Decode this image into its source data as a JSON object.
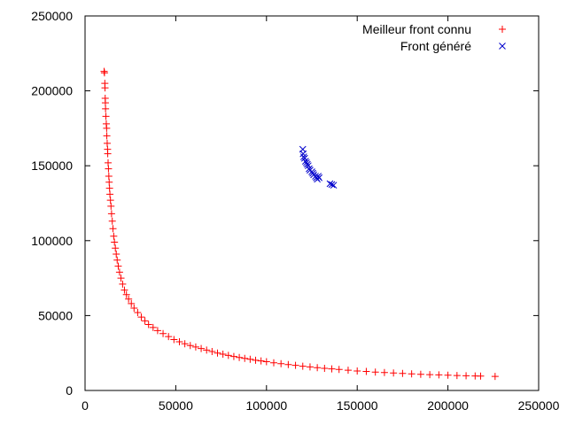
{
  "colors": {
    "series_known": "#ff0000",
    "series_generated": "#0000cc",
    "axis": "#000000",
    "background": "#ffffff"
  },
  "chart_data": {
    "type": "scatter",
    "title": "",
    "xlabel": "",
    "ylabel": "",
    "xlim": [
      0,
      250000
    ],
    "ylim": [
      0,
      250000
    ],
    "x_ticks": [
      0,
      50000,
      100000,
      150000,
      200000,
      250000
    ],
    "y_ticks": [
      0,
      50000,
      100000,
      150000,
      200000,
      250000
    ],
    "x_tick_labels": [
      "0",
      "50000",
      "100000",
      "150000",
      "200000",
      "250000"
    ],
    "y_tick_labels": [
      "0",
      "50000",
      "100000",
      "150000",
      "200000",
      "250000"
    ],
    "grid": false,
    "legend_position": "top-right",
    "series": [
      {
        "name": "Meilleur front connu",
        "marker": "plus",
        "color": "#ff0000",
        "points": [
          [
            10500,
            213000
          ],
          [
            10700,
            212000
          ],
          [
            10900,
            205000
          ],
          [
            11000,
            202000
          ],
          [
            11100,
            195000
          ],
          [
            11200,
            192000
          ],
          [
            11300,
            188000
          ],
          [
            11500,
            183000
          ],
          [
            11700,
            178000
          ],
          [
            11900,
            175000
          ],
          [
            12000,
            170000
          ],
          [
            12200,
            165000
          ],
          [
            12400,
            161000
          ],
          [
            12500,
            158000
          ],
          [
            12700,
            152000
          ],
          [
            12900,
            148000
          ],
          [
            13100,
            143000
          ],
          [
            13300,
            139000
          ],
          [
            13500,
            135000
          ],
          [
            13700,
            131000
          ],
          [
            14000,
            127000
          ],
          [
            14300,
            123000
          ],
          [
            14600,
            118000
          ],
          [
            15000,
            113000
          ],
          [
            15400,
            108000
          ],
          [
            15800,
            103000
          ],
          [
            16200,
            99000
          ],
          [
            16700,
            95000
          ],
          [
            17200,
            91000
          ],
          [
            17700,
            87000
          ],
          [
            18300,
            83000
          ],
          [
            19000,
            79000
          ],
          [
            19800,
            75000
          ],
          [
            20700,
            71000
          ],
          [
            21700,
            67000
          ],
          [
            22800,
            64000
          ],
          [
            24000,
            61000
          ],
          [
            25500,
            58000
          ],
          [
            27000,
            55000
          ],
          [
            29000,
            52000
          ],
          [
            31000,
            49000
          ],
          [
            33000,
            46500
          ],
          [
            35000,
            44000
          ],
          [
            37500,
            42000
          ],
          [
            40000,
            40000
          ],
          [
            43000,
            38000
          ],
          [
            46000,
            36000
          ],
          [
            49000,
            34000
          ],
          [
            52000,
            32500
          ],
          [
            55000,
            31200
          ],
          [
            58000,
            30000
          ],
          [
            61000,
            29000
          ],
          [
            64000,
            28000
          ],
          [
            67000,
            27000
          ],
          [
            70000,
            26000
          ],
          [
            73000,
            25000
          ],
          [
            76000,
            24200
          ],
          [
            79000,
            23400
          ],
          [
            82000,
            22700
          ],
          [
            85000,
            22000
          ],
          [
            88000,
            21400
          ],
          [
            91000,
            20800
          ],
          [
            94000,
            20200
          ],
          [
            97000,
            19700
          ],
          [
            100000,
            19200
          ],
          [
            104000,
            18500
          ],
          [
            108000,
            17900
          ],
          [
            112000,
            17300
          ],
          [
            116000,
            16800
          ],
          [
            120000,
            16200
          ],
          [
            124000,
            15700
          ],
          [
            128000,
            15200
          ],
          [
            132000,
            14800
          ],
          [
            136000,
            14400
          ],
          [
            140000,
            14000
          ],
          [
            145000,
            13500
          ],
          [
            150000,
            13000
          ],
          [
            155000,
            12700
          ],
          [
            160000,
            12300
          ],
          [
            165000,
            12000
          ],
          [
            170000,
            11700
          ],
          [
            175000,
            11400
          ],
          [
            180000,
            11100
          ],
          [
            185000,
            10800
          ],
          [
            190000,
            10600
          ],
          [
            195000,
            10400
          ],
          [
            200000,
            10200
          ],
          [
            205000,
            10000
          ],
          [
            210000,
            9800
          ],
          [
            215000,
            9700
          ],
          [
            218000,
            9600
          ],
          [
            226000,
            9400
          ]
        ]
      },
      {
        "name": "Front généré",
        "marker": "cross",
        "color": "#0000cc",
        "points": [
          [
            120000,
            161000
          ],
          [
            120200,
            158000
          ],
          [
            120500,
            156000
          ],
          [
            121000,
            155000
          ],
          [
            121500,
            153000
          ],
          [
            122000,
            152000
          ],
          [
            122500,
            151000
          ],
          [
            123000,
            150000
          ],
          [
            123500,
            148000
          ],
          [
            124000,
            147000
          ],
          [
            125000,
            146000
          ],
          [
            125500,
            145000
          ],
          [
            126000,
            144000
          ],
          [
            127000,
            143000
          ],
          [
            127500,
            142000
          ],
          [
            128000,
            141000
          ],
          [
            128500,
            143000
          ],
          [
            129000,
            142000
          ],
          [
            135000,
            138000
          ],
          [
            136000,
            137500
          ],
          [
            137000,
            137000
          ]
        ]
      }
    ]
  }
}
